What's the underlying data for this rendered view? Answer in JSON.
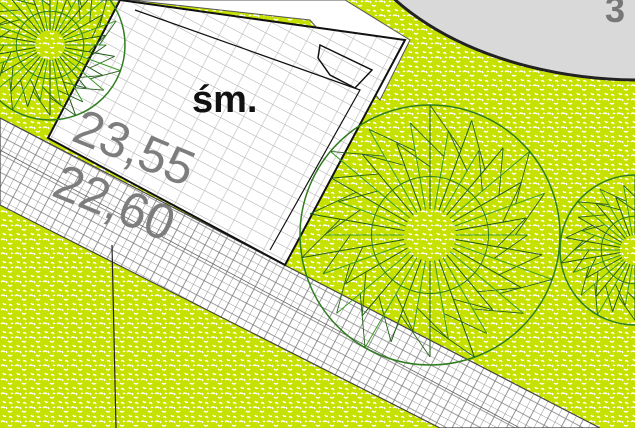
{
  "labels": {
    "building": "śm.",
    "elevation_upper": "23,55",
    "elevation_lower": "22,60",
    "corner_number": "3"
  }
}
